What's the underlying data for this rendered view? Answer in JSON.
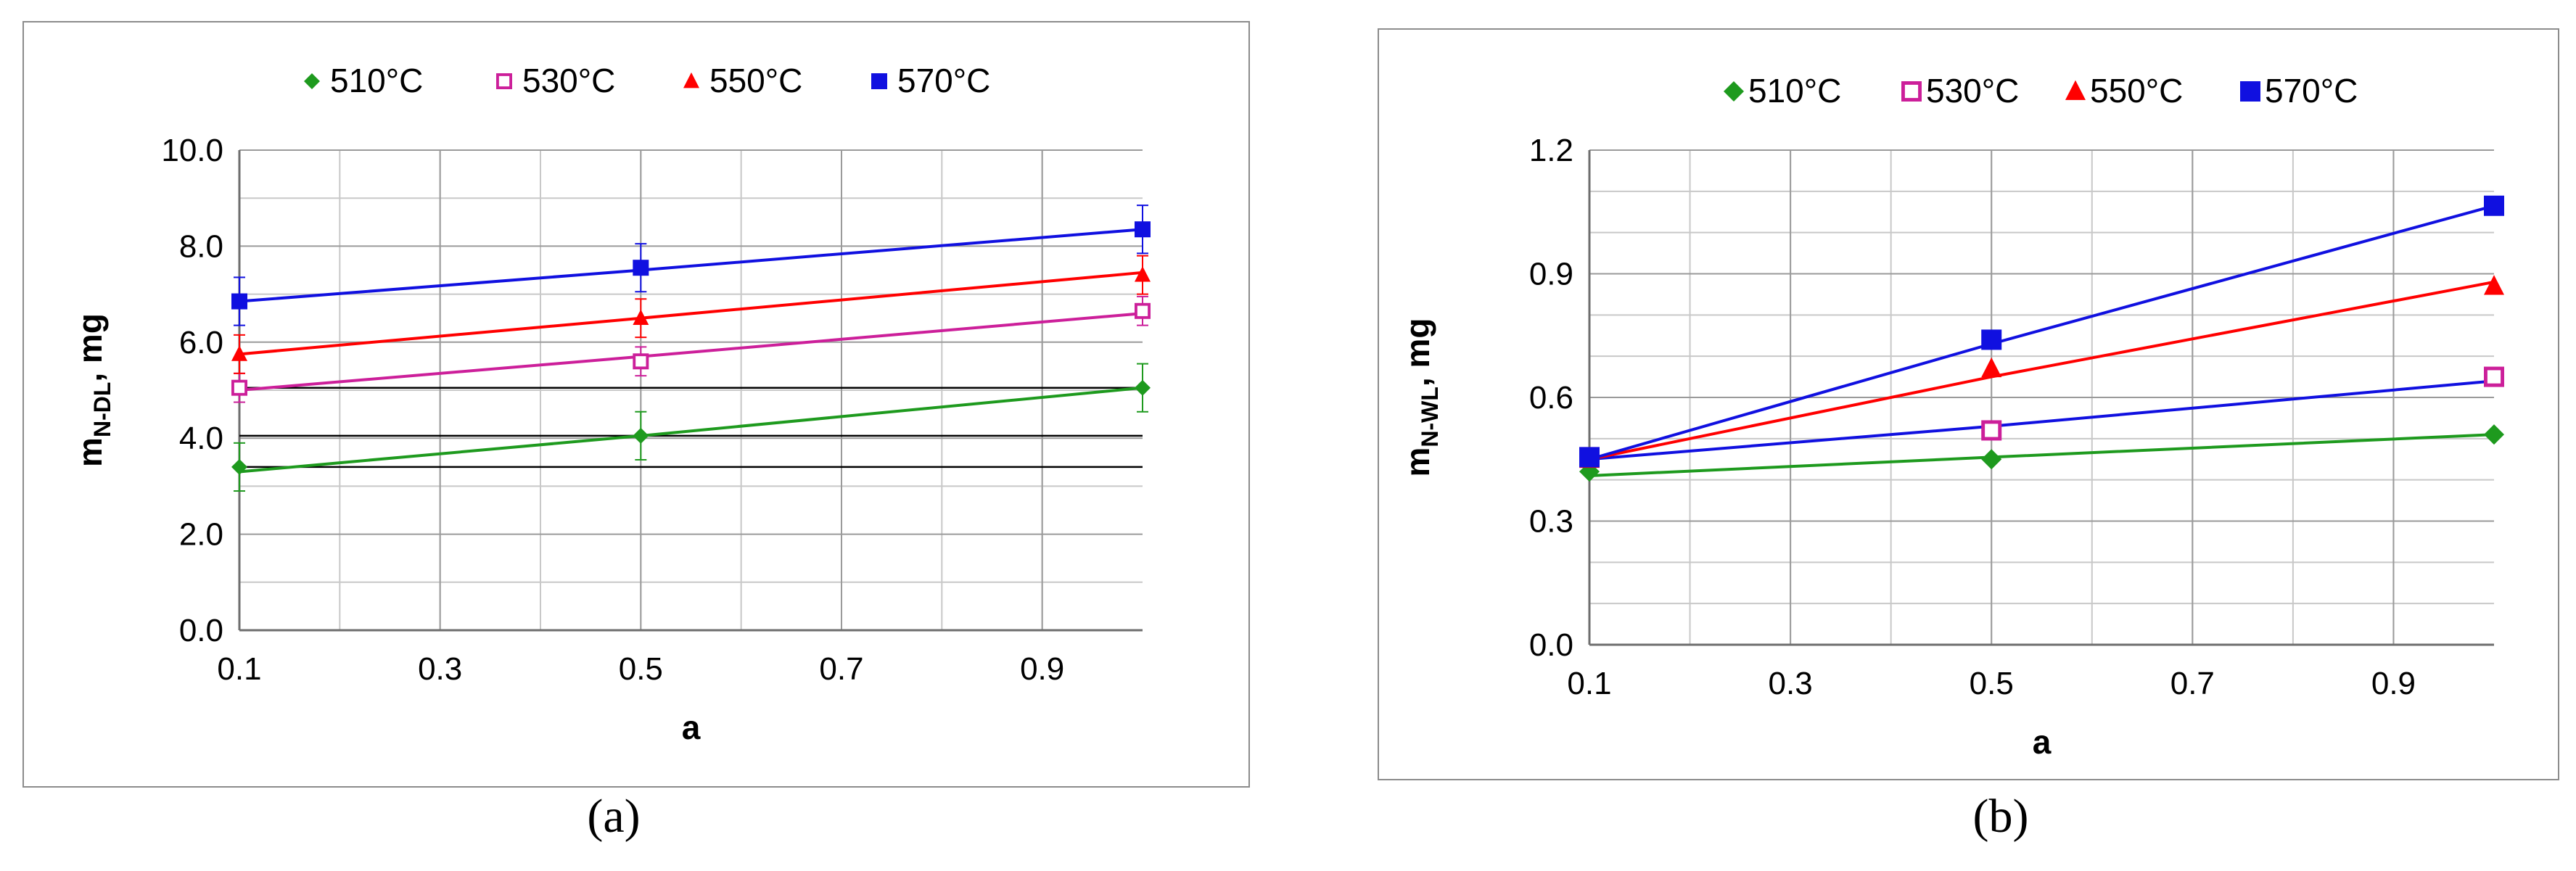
{
  "chart_data": [
    {
      "type": "line",
      "panel_label": "(a)",
      "ylabel_main": "m",
      "ylabel_sub": "N-DL",
      "ylabel_unit": ", mg",
      "xlabel": "a",
      "xlim": [
        0.1,
        1.0
      ],
      "ylim": [
        0.0,
        10.0
      ],
      "x_ticks": [
        "0.1",
        "0.3",
        "0.5",
        "0.7",
        "0.9"
      ],
      "y_ticks": [
        "0.0",
        "2.0",
        "4.0",
        "6.0",
        "8.0",
        "10.0"
      ],
      "x": [
        0.1,
        0.5,
        1.0
      ],
      "series": [
        {
          "name": "510°C",
          "color": "#1e9a1e",
          "marker": "diamond",
          "values": [
            3.4,
            4.05,
            5.05
          ],
          "error": [
            0.5,
            0.5,
            0.5
          ],
          "fit": [
            3.3,
            4.05,
            5.05
          ]
        },
        {
          "name": "530°C",
          "color": "#cc1f9a",
          "marker": "square-open",
          "values": [
            5.05,
            5.6,
            6.65
          ],
          "error": [
            0.3,
            0.3,
            0.3
          ],
          "fit": [
            5.0,
            5.7,
            6.6
          ]
        },
        {
          "name": "550°C",
          "color": "#ff0000",
          "marker": "triangle",
          "values": [
            5.75,
            6.5,
            7.4
          ],
          "error": [
            0.4,
            0.4,
            0.4
          ],
          "fit": [
            5.75,
            6.5,
            7.45
          ]
        },
        {
          "name": "570°C",
          "color": "#1010e0",
          "marker": "square",
          "values": [
            6.85,
            7.55,
            8.35
          ],
          "error": [
            0.5,
            0.5,
            0.5
          ],
          "fit": [
            6.85,
            7.5,
            8.35
          ]
        }
      ],
      "reference_lines": [
        3.4,
        4.05,
        5.05
      ]
    },
    {
      "type": "line",
      "panel_label": "(b)",
      "ylabel_main": "m",
      "ylabel_sub": "N-WL",
      "ylabel_unit": ", mg",
      "xlabel": "a",
      "xlim": [
        0.1,
        1.0
      ],
      "ylim": [
        0.0,
        1.2
      ],
      "x_ticks": [
        "0.1",
        "0.3",
        "0.5",
        "0.7",
        "0.9"
      ],
      "y_ticks": [
        "0.0",
        "0.3",
        "0.6",
        "0.9",
        "1.2"
      ],
      "x": [
        0.1,
        0.5,
        1.0
      ],
      "series": [
        {
          "name": "510°C",
          "color": "#1e9a1e",
          "marker": "diamond",
          "values": [
            0.42,
            0.45,
            0.51
          ],
          "fit": [
            0.41,
            0.455,
            0.51
          ]
        },
        {
          "name": "530°C",
          "color": "#cc1f9a",
          "marker": "square-open",
          "values": [
            0.455,
            0.52,
            0.65
          ],
          "fit": [
            0.45,
            0.53,
            0.64
          ]
        },
        {
          "name": "550°C",
          "color": "#ff0000",
          "marker": "triangle",
          "values": [
            0.45,
            0.67,
            0.87
          ],
          "fit": [
            0.45,
            0.65,
            0.88
          ]
        },
        {
          "name": "570°C",
          "color": "#1010e0",
          "marker": "square",
          "values": [
            0.455,
            0.74,
            1.065
          ],
          "fit": [
            0.45,
            0.73,
            1.065
          ]
        }
      ]
    }
  ]
}
